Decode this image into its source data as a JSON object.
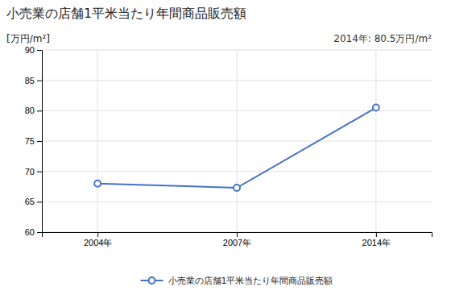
{
  "chart_data": {
    "type": "line",
    "title": "小売業の店舗1平米当たり年間商品販売額",
    "y_label": "[万円/m²]",
    "annotation": "2014年: 80.5万円/m²",
    "categories": [
      "2004年",
      "2007年",
      "2014年"
    ],
    "series": [
      {
        "name": "小売業の店舗1平米当たり年間商品販売額",
        "color": "#4472C4",
        "marker": "circle",
        "values": [
          68.0,
          67.3,
          80.5
        ]
      }
    ],
    "ylim": [
      60,
      90
    ],
    "yticks": [
      60,
      65,
      70,
      75,
      80,
      85,
      90
    ],
    "grid": true,
    "legend": "bottom"
  }
}
